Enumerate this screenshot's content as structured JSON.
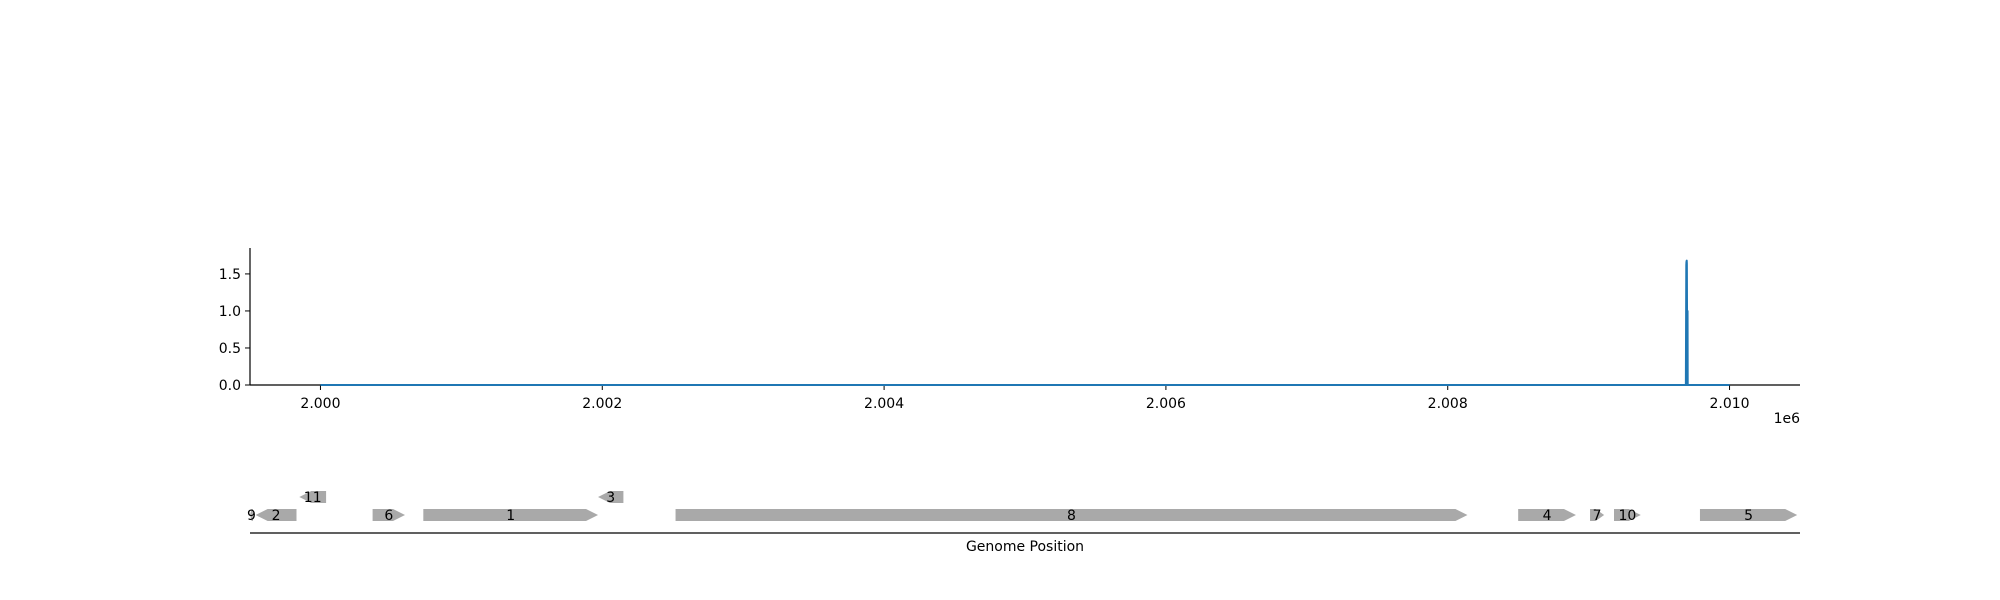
{
  "chart_data": [
    {
      "type": "line",
      "color": "#1f77b4",
      "xlim": [
        1999500,
        2010500
      ],
      "ylim": [
        0,
        1.85
      ],
      "x_ticks": [
        2000000,
        2002000,
        2004000,
        2006000,
        2008000,
        2010000
      ],
      "x_tick_labels": [
        "2.000",
        "2.002",
        "2.004",
        "2.006",
        "2.008",
        "2.010"
      ],
      "x_offset_label": "1e6",
      "y_ticks": [
        0,
        0.5,
        1.0,
        1.5
      ],
      "y_tick_labels": [
        "0.0",
        "0.5",
        "1.0",
        "1.5"
      ],
      "series": [
        {
          "x": [
            2000000,
            2009690,
            2009693,
            2009694,
            2009696,
            2009697,
            2009700,
            2009701,
            2009702,
            2009703,
            2009704,
            2009706,
            2009710,
            2010000
          ],
          "y": [
            0,
            0,
            1.62,
            1.66,
            1.68,
            1.64,
            0,
            1.0,
            1.0,
            0,
            0,
            0,
            0,
            0
          ]
        }
      ]
    },
    {
      "type": "gene-track",
      "xlabel": "Genome Position",
      "xlim": [
        1999500,
        2010500
      ],
      "feature_color": "#a9a9a9",
      "features": [
        {
          "label": "9",
          "start": 1999500,
          "end": 1999520,
          "strand": -1,
          "row": 0
        },
        {
          "label": "2",
          "start": 1999540,
          "end": 1999830,
          "strand": -1,
          "row": 0
        },
        {
          "label": "11",
          "start": 1999850,
          "end": 2000040,
          "strand": -1,
          "row": 1
        },
        {
          "label": "6",
          "start": 2000370,
          "end": 2000600,
          "strand": 1,
          "row": 0
        },
        {
          "label": "1",
          "start": 2000730,
          "end": 2001970,
          "strand": 1,
          "row": 0
        },
        {
          "label": "3",
          "start": 2001970,
          "end": 2002150,
          "strand": -1,
          "row": 1
        },
        {
          "label": "8",
          "start": 2002520,
          "end": 2008140,
          "strand": 1,
          "row": 0
        },
        {
          "label": "4",
          "start": 2008500,
          "end": 2008910,
          "strand": 1,
          "row": 0
        },
        {
          "label": "7",
          "start": 2009010,
          "end": 2009110,
          "strand": 1,
          "row": 0
        },
        {
          "label": "10",
          "start": 2009180,
          "end": 2009370,
          "strand": 1,
          "row": 0
        },
        {
          "label": "5",
          "start": 2009790,
          "end": 2010480,
          "strand": 1,
          "row": 0
        }
      ]
    }
  ]
}
